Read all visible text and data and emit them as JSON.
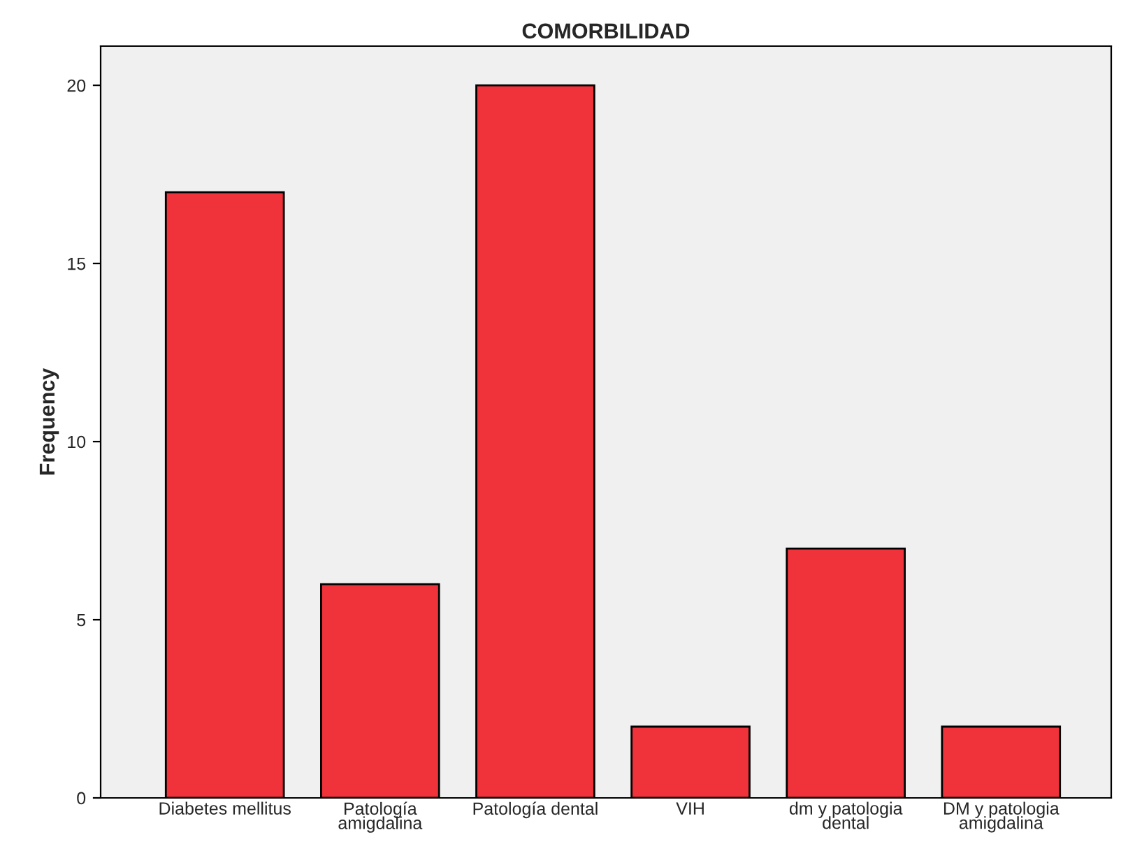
{
  "chart_data": {
    "type": "bar",
    "title": "COMORBILIDAD",
    "ylabel": "Frequency",
    "categories": [
      "Diabetes mellitus",
      "Patología amigdalina",
      "Patología dental",
      "VIH",
      "dm y patologia dental",
      "DM y patologia amigdalina"
    ],
    "values": [
      17,
      6,
      20,
      2,
      7,
      2
    ],
    "color": "#f0323a",
    "ylim": [
      0,
      21.1
    ],
    "yticks": [
      0,
      5,
      10,
      15,
      20
    ],
    "grid": false
  }
}
